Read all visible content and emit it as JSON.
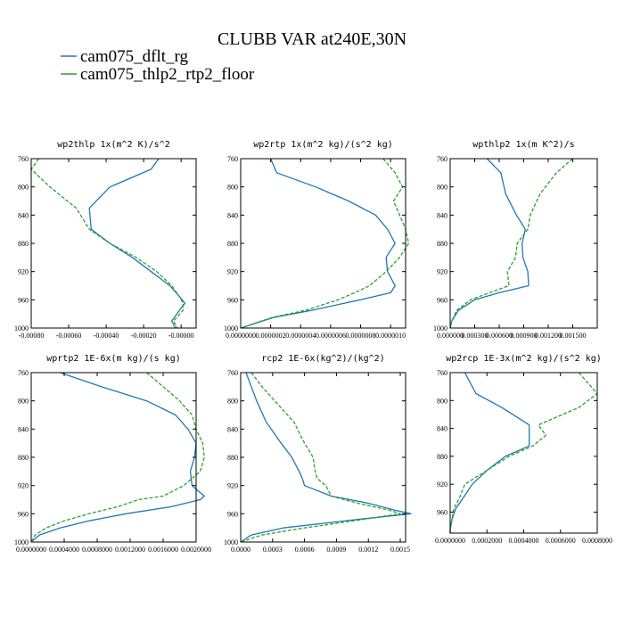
{
  "chart_data": [
    {
      "type": "line",
      "title": "wp2thlp  1x(m^2 K)/s^2",
      "y": [
        760,
        775,
        800,
        830,
        860,
        880,
        900,
        920,
        940,
        955,
        965,
        975,
        990,
        1000
      ],
      "ylim": [
        760,
        1000
      ],
      "yticks": [
        760,
        800,
        840,
        880,
        920,
        960,
        1000
      ],
      "xlim": [
        -0.0008,
        8e-05
      ],
      "xticks": [
        -0.0008,
        -0.0006,
        -0.0004,
        -0.0002,
        0.0
      ],
      "xtick_labels": [
        "-0.00080",
        "-0.00060",
        "-0.00040",
        "-0.00020",
        "-0.00000"
      ],
      "series": [
        {
          "name": "cam075_dflt_rg",
          "values": [
            -0.00012,
            -0.00016,
            -0.00038,
            -0.00049,
            -0.00048,
            -0.00038,
            -0.00026,
            -0.00016,
            -6e-05,
            -1e-05,
            2e-05,
            -1e-05,
            -5e-05,
            -3e-05
          ]
        },
        {
          "name": "cam075_thlp2_rtp2_floor",
          "values": [
            -0.00076,
            -0.0008,
            -0.0007,
            -0.00056,
            -0.00049,
            -0.00038,
            -0.00024,
            -0.00013,
            -5e-05,
            -1e-05,
            1e-05,
            1e-05,
            -4e-05,
            -2e-05
          ]
        }
      ]
    },
    {
      "type": "line",
      "title": "wp2rtp  1x(m^2 kg)/(s^2 kg)",
      "y": [
        760,
        780,
        800,
        820,
        840,
        860,
        880,
        900,
        920,
        940,
        950,
        960,
        975,
        985,
        1000
      ],
      "ylim": [
        760,
        1000
      ],
      "yticks": [
        760,
        800,
        840,
        880,
        920,
        960,
        1000
      ],
      "xlim": [
        0.0,
        1.1e-06
      ],
      "xticks": [
        0.0,
        2e-07,
        4e-07,
        6e-07,
        8e-07,
        1e-06
      ],
      "xtick_labels": [
        "0.0000000",
        "0.0000002",
        "0.0000004",
        "0.0000006",
        "0.0000008",
        "0.0000010"
      ],
      "series": [
        {
          "name": "cam075_dflt_rg",
          "values": [
            2e-07,
            2.4e-07,
            5e-07,
            7.2e-07,
            9e-07,
            9.8e-07,
            1.03e-06,
            9.7e-07,
            9.8e-07,
            1.03e-06,
            1e-06,
            8e-07,
            4.7e-07,
            2.2e-07,
            0.0
          ]
        },
        {
          "name": "cam075_thlp2_rtp2_floor",
          "values": [
            9.5e-07,
            1.03e-06,
            1.08e-06,
            1.02e-06,
            1.06e-06,
            1.1e-06,
            1.12e-06,
            1.06e-06,
            9.7e-07,
            8.6e-07,
            7.6e-07,
            6.5e-07,
            4.3e-07,
            2.1e-07,
            0.0
          ]
        }
      ]
    },
    {
      "type": "line",
      "title": "wpthlp2  1x(m K^2)/s",
      "y": [
        760,
        780,
        810,
        840,
        860,
        880,
        900,
        920,
        940,
        950,
        960,
        975,
        990,
        1000
      ],
      "ylim": [
        760,
        1000
      ],
      "yticks": [
        760,
        800,
        840,
        880,
        920,
        960,
        1000
      ],
      "xlim": [
        0.0,
        0.0018
      ],
      "xticks": [
        0.0,
        0.0003,
        0.0006,
        0.0009,
        0.0012,
        0.0015
      ],
      "xtick_labels": [
        "0.000000",
        "0.000300",
        "0.000600",
        "0.000900",
        "0.001200",
        "0.001500"
      ],
      "series": [
        {
          "name": "cam075_dflt_rg",
          "values": [
            0.00045,
            0.00062,
            0.00068,
            0.00081,
            0.00092,
            0.00088,
            0.00089,
            0.00095,
            0.00096,
            0.0006,
            0.0003,
            0.0001,
            2e-05,
            0.0
          ]
        },
        {
          "name": "cam075_thlp2_rtp2_floor",
          "values": [
            0.0015,
            0.0013,
            0.0011,
            0.00098,
            0.00095,
            0.00082,
            0.0008,
            0.0007,
            0.00072,
            0.00048,
            0.00025,
            8e-05,
            2e-05,
            0.0
          ]
        }
      ]
    },
    {
      "type": "line",
      "title": "wprtp2  1E-6x(m kg)/(s kg)",
      "y": [
        760,
        780,
        800,
        820,
        840,
        860,
        880,
        900,
        920,
        935,
        940,
        950,
        960,
        970,
        980,
        990,
        1000
      ],
      "ylim": [
        760,
        1000
      ],
      "yticks": [
        760,
        800,
        840,
        880,
        920,
        960,
        1000
      ],
      "xlim": [
        0.0,
        0.002
      ],
      "xticks": [
        0.0,
        0.0004,
        0.0008,
        0.0012,
        0.0016,
        0.002
      ],
      "xtick_labels": [
        "0.0000000",
        "0.0004000",
        "0.0008000",
        "0.0012000",
        "0.0016000",
        "0.0020000"
      ],
      "series": [
        {
          "name": "cam075_dflt_rg",
          "values": [
            0.00035,
            0.00085,
            0.0014,
            0.00175,
            0.0019,
            0.002,
            0.00198,
            0.00193,
            0.00195,
            0.0021,
            0.00205,
            0.0017,
            0.00115,
            0.0007,
            0.00035,
            0.0001,
            0.0
          ]
        },
        {
          "name": "cam075_thlp2_rtp2_floor",
          "values": [
            0.0014,
            0.0016,
            0.0018,
            0.00195,
            0.002,
            0.00208,
            0.0021,
            0.00205,
            0.00185,
            0.0016,
            0.0013,
            0.00105,
            0.0007,
            0.0004,
            0.00018,
            5e-05,
            0.0
          ]
        }
      ]
    },
    {
      "type": "line",
      "title": "rcp2  1E-6x(kg^2)/(kg^2)",
      "y": [
        760,
        780,
        800,
        830,
        860,
        880,
        900,
        910,
        920,
        935,
        945,
        955,
        960,
        968,
        980,
        990,
        1000
      ],
      "ylim": [
        760,
        1000
      ],
      "yticks": [
        760,
        800,
        840,
        880,
        920,
        960,
        1000
      ],
      "xlim": [
        0.0,
        0.00155
      ],
      "xticks": [
        0.0,
        0.0003,
        0.0006,
        0.0009,
        0.0012,
        0.0015
      ],
      "xtick_labels": [
        "0.0000",
        "0.0003",
        "0.0006",
        "0.0009",
        "0.0012",
        "0.0015"
      ],
      "series": [
        {
          "name": "cam075_dflt_rg",
          "values": [
            5e-05,
            0.0001,
            0.00015,
            0.00024,
            0.00038,
            0.00048,
            0.00055,
            0.00058,
            0.0006,
            0.00085,
            0.0012,
            0.00145,
            0.0016,
            0.0011,
            0.0004,
            0.0001,
            0.0
          ]
        },
        {
          "name": "cam075_thlp2_rtp2_floor",
          "values": [
            0.0001,
            0.0002,
            0.00032,
            0.0005,
            0.0006,
            0.00068,
            0.0007,
            0.00072,
            0.0008,
            0.00085,
            0.0011,
            0.0014,
            0.0015,
            0.00115,
            0.0006,
            0.0002,
            0.0
          ]
        }
      ]
    },
    {
      "type": "line",
      "title": "wp2rcp  1E-3x(m^2 kg)/(s^2 kg)",
      "y": [
        760,
        790,
        810,
        835,
        850,
        865,
        880,
        900,
        920,
        940,
        955,
        970,
        985,
        990
      ],
      "ylim": [
        760,
        990
      ],
      "yticks": [
        760,
        800,
        840,
        880,
        920,
        960
      ],
      "xlim": [
        0.0,
        0.0008
      ],
      "xticks": [
        0.0,
        0.0002,
        0.0004,
        0.0006,
        0.0008
      ],
      "xtick_labels": [
        "0.0000000",
        "0.0002000",
        "0.0004000",
        "0.0006000",
        "0.0008000"
      ],
      "series": [
        {
          "name": "cam075_dflt_rg",
          "values": [
            8e-05,
            0.00014,
            0.00028,
            0.00043,
            0.00043,
            0.00043,
            0.0003,
            0.0002,
            0.00012,
            7e-05,
            3e-05,
            1e-05,
            0.0,
            0.0
          ]
        },
        {
          "name": "cam075_thlp2_rtp2_floor",
          "values": [
            0.0007,
            0.0008,
            0.0007,
            0.00048,
            0.00052,
            0.00045,
            0.00032,
            0.0002,
            8e-05,
            5e-05,
            2e-05,
            1e-05,
            0.0,
            0.0
          ]
        }
      ]
    }
  ],
  "figure": {
    "title": "CLUBB VAR at240E,30N",
    "legend": [
      {
        "label": "cam075_dflt_rg",
        "color": "#1f77b4",
        "dash": "solid"
      },
      {
        "label": "cam075_thlp2_rtp2_floor",
        "color": "#2ca02c",
        "dash": "dashed"
      }
    ],
    "series_colors": [
      "#1f77b4",
      "#2ca02c"
    ],
    "y_axis": "pressure, reversed",
    "grid": false
  }
}
